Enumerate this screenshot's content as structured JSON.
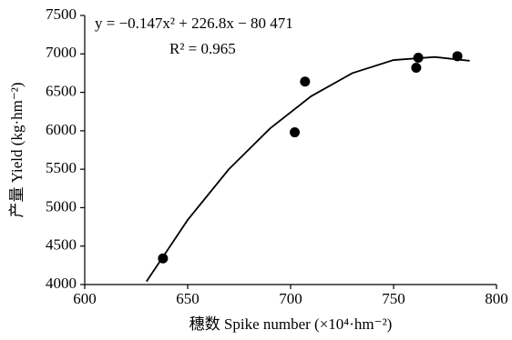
{
  "chart_data": {
    "type": "scatter",
    "equation": "y = −0.147x² + 226.8x − 80 471",
    "r_squared": "R² = 0.965",
    "x_label": "穗数 Spike number (×10⁴·hm⁻²)",
    "y_label": "产量 Yield (kg·hm⁻²)",
    "x": [
      638,
      702,
      707,
      761,
      762,
      781
    ],
    "values": [
      4340,
      5980,
      6640,
      6820,
      6950,
      6970
    ],
    "color": "#000000",
    "curve": {
      "x": [
        630,
        650,
        670,
        690,
        710,
        730,
        750,
        770,
        787
      ],
      "values": [
        4040,
        4840,
        5500,
        6030,
        6450,
        6750,
        6920,
        6960,
        6910
      ]
    },
    "xlim": [
      600,
      800
    ],
    "xticks": [
      600,
      650,
      700,
      750,
      800
    ],
    "ylim": [
      4000,
      7500
    ],
    "yticks": [
      4000,
      4500,
      5000,
      5500,
      6000,
      6500,
      7000,
      7500
    ],
    "grid": false
  }
}
